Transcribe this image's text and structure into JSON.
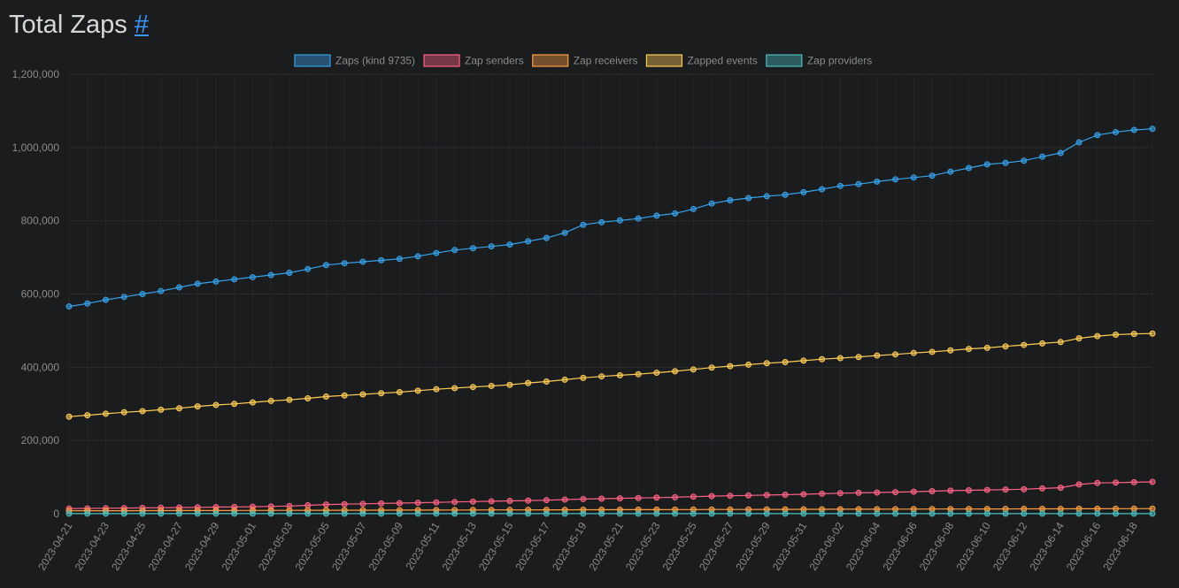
{
  "header": {
    "title": "Total Zaps",
    "anchor": "#"
  },
  "colors": {
    "blue": "#36a2eb",
    "red": "#ff6384",
    "orange": "#ff9f40",
    "yellow": "#ffcd56",
    "teal": "#4bc0c0"
  },
  "chart_data": {
    "type": "line",
    "title": "",
    "xlabel": "",
    "ylabel": "",
    "ylim": [
      0,
      1200000
    ],
    "yticks": [
      0,
      200000,
      400000,
      600000,
      800000,
      1000000,
      1200000
    ],
    "ytick_labels": [
      "0",
      "200,000",
      "400,000",
      "600,000",
      "800,000",
      "1,000,000",
      "1,200,000"
    ],
    "grid": true,
    "legend_position": "top-center",
    "x": [
      "2023-04-21",
      "2023-04-22",
      "2023-04-23",
      "2023-04-24",
      "2023-04-25",
      "2023-04-26",
      "2023-04-27",
      "2023-04-28",
      "2023-04-29",
      "2023-04-30",
      "2023-05-01",
      "2023-05-02",
      "2023-05-03",
      "2023-05-04",
      "2023-05-05",
      "2023-05-06",
      "2023-05-07",
      "2023-05-08",
      "2023-05-09",
      "2023-05-10",
      "2023-05-11",
      "2023-05-12",
      "2023-05-13",
      "2023-05-14",
      "2023-05-15",
      "2023-05-16",
      "2023-05-17",
      "2023-05-18",
      "2023-05-19",
      "2023-05-20",
      "2023-05-21",
      "2023-05-22",
      "2023-05-23",
      "2023-05-24",
      "2023-05-25",
      "2023-05-26",
      "2023-05-27",
      "2023-05-28",
      "2023-05-29",
      "2023-05-30",
      "2023-05-31",
      "2023-06-01",
      "2023-06-02",
      "2023-06-03",
      "2023-06-04",
      "2023-06-05",
      "2023-06-06",
      "2023-06-07",
      "2023-06-08",
      "2023-06-09",
      "2023-06-10",
      "2023-06-11",
      "2023-06-12",
      "2023-06-13",
      "2023-06-14",
      "2023-06-15",
      "2023-06-16",
      "2023-06-17",
      "2023-06-18",
      "2023-06-19"
    ],
    "xtick_labels": [
      "2023-04-21",
      "2023-04-23",
      "2023-04-25",
      "2023-04-27",
      "2023-04-29",
      "2023-05-01",
      "2023-05-03",
      "2023-05-05",
      "2023-05-07",
      "2023-05-09",
      "2023-05-11",
      "2023-05-13",
      "2023-05-15",
      "2023-05-17",
      "2023-05-19",
      "2023-05-21",
      "2023-05-23",
      "2023-05-25",
      "2023-05-27",
      "2023-05-29",
      "2023-05-31",
      "2023-06-02",
      "2023-06-04",
      "2023-06-06",
      "2023-06-08",
      "2023-06-10",
      "2023-06-12",
      "2023-06-14",
      "2023-06-16",
      "2023-06-18"
    ],
    "series": [
      {
        "name": "Zaps (kind 9735)",
        "color": "#36a2eb",
        "values": [
          566000,
          574000,
          584000,
          592000,
          600000,
          608000,
          618000,
          628000,
          634000,
          640000,
          646000,
          652000,
          658000,
          668000,
          679000,
          684000,
          688000,
          692000,
          696000,
          703000,
          712000,
          720000,
          725000,
          730000,
          735000,
          744000,
          753000,
          767000,
          789000,
          796000,
          801000,
          806000,
          814000,
          820000,
          832000,
          847000,
          856000,
          862000,
          867000,
          871000,
          878000,
          886000,
          895000,
          900000,
          907000,
          913000,
          918000,
          923000,
          934000,
          944000,
          954000,
          958000,
          964000,
          975000,
          985000,
          1014000,
          1034000,
          1042000,
          1048000,
          1051000
        ]
      },
      {
        "name": "Zap senders",
        "color": "#ff6384",
        "values": [
          14000,
          14500,
          15000,
          15500,
          16000,
          16500,
          17000,
          17500,
          18000,
          18500,
          19000,
          20000,
          21000,
          23000,
          25000,
          26000,
          27000,
          28000,
          29000,
          30000,
          31000,
          32000,
          33000,
          34000,
          35000,
          36000,
          37000,
          38500,
          40000,
          41000,
          42000,
          43000,
          44000,
          45000,
          46500,
          48000,
          49000,
          50000,
          51000,
          52000,
          53000,
          54500,
          56000,
          57000,
          58000,
          59000,
          60000,
          61500,
          63000,
          64000,
          65000,
          66000,
          67000,
          69000,
          71000,
          80000,
          84000,
          85000,
          86000,
          87000
        ]
      },
      {
        "name": "Zap receivers",
        "color": "#ff9f40",
        "values": [
          8000,
          8100,
          8200,
          8300,
          8400,
          8500,
          8600,
          8700,
          8800,
          8900,
          9000,
          9100,
          9200,
          9300,
          9400,
          9500,
          9600,
          9700,
          9800,
          9900,
          10000,
          10100,
          10200,
          10300,
          10400,
          10500,
          10600,
          10700,
          10800,
          10900,
          11000,
          11100,
          11200,
          11300,
          11400,
          11500,
          11600,
          11700,
          11800,
          11900,
          12000,
          12100,
          12200,
          12300,
          12400,
          12500,
          12600,
          12700,
          12800,
          12900,
          13000,
          13100,
          13200,
          13300,
          13400,
          13500,
          13600,
          13700,
          13800,
          13900
        ]
      },
      {
        "name": "Zapped events",
        "color": "#ffcd56",
        "values": [
          265000,
          269000,
          273000,
          277000,
          280000,
          284000,
          288000,
          293000,
          297000,
          300000,
          304000,
          308000,
          311000,
          315000,
          320000,
          323000,
          326000,
          329000,
          332000,
          336000,
          340000,
          343000,
          346000,
          349000,
          352000,
          357000,
          361000,
          366000,
          371000,
          375000,
          378000,
          381000,
          385000,
          389000,
          394000,
          399000,
          403000,
          407000,
          411000,
          414000,
          418000,
          422000,
          425000,
          428000,
          432000,
          435000,
          439000,
          442000,
          446000,
          450000,
          453000,
          457000,
          461000,
          465000,
          469000,
          479000,
          485000,
          489000,
          491000,
          492000
        ]
      },
      {
        "name": "Zap providers",
        "color": "#4bc0c0",
        "values": [
          300,
          300,
          300,
          300,
          300,
          300,
          300,
          300,
          300,
          300,
          300,
          300,
          300,
          300,
          300,
          300,
          300,
          300,
          300,
          300,
          300,
          300,
          300,
          300,
          300,
          300,
          300,
          300,
          300,
          300,
          300,
          300,
          300,
          300,
          300,
          300,
          300,
          300,
          300,
          300,
          300,
          300,
          300,
          300,
          300,
          300,
          300,
          300,
          300,
          300,
          300,
          300,
          300,
          300,
          300,
          300,
          300,
          300,
          300,
          300
        ]
      }
    ]
  }
}
